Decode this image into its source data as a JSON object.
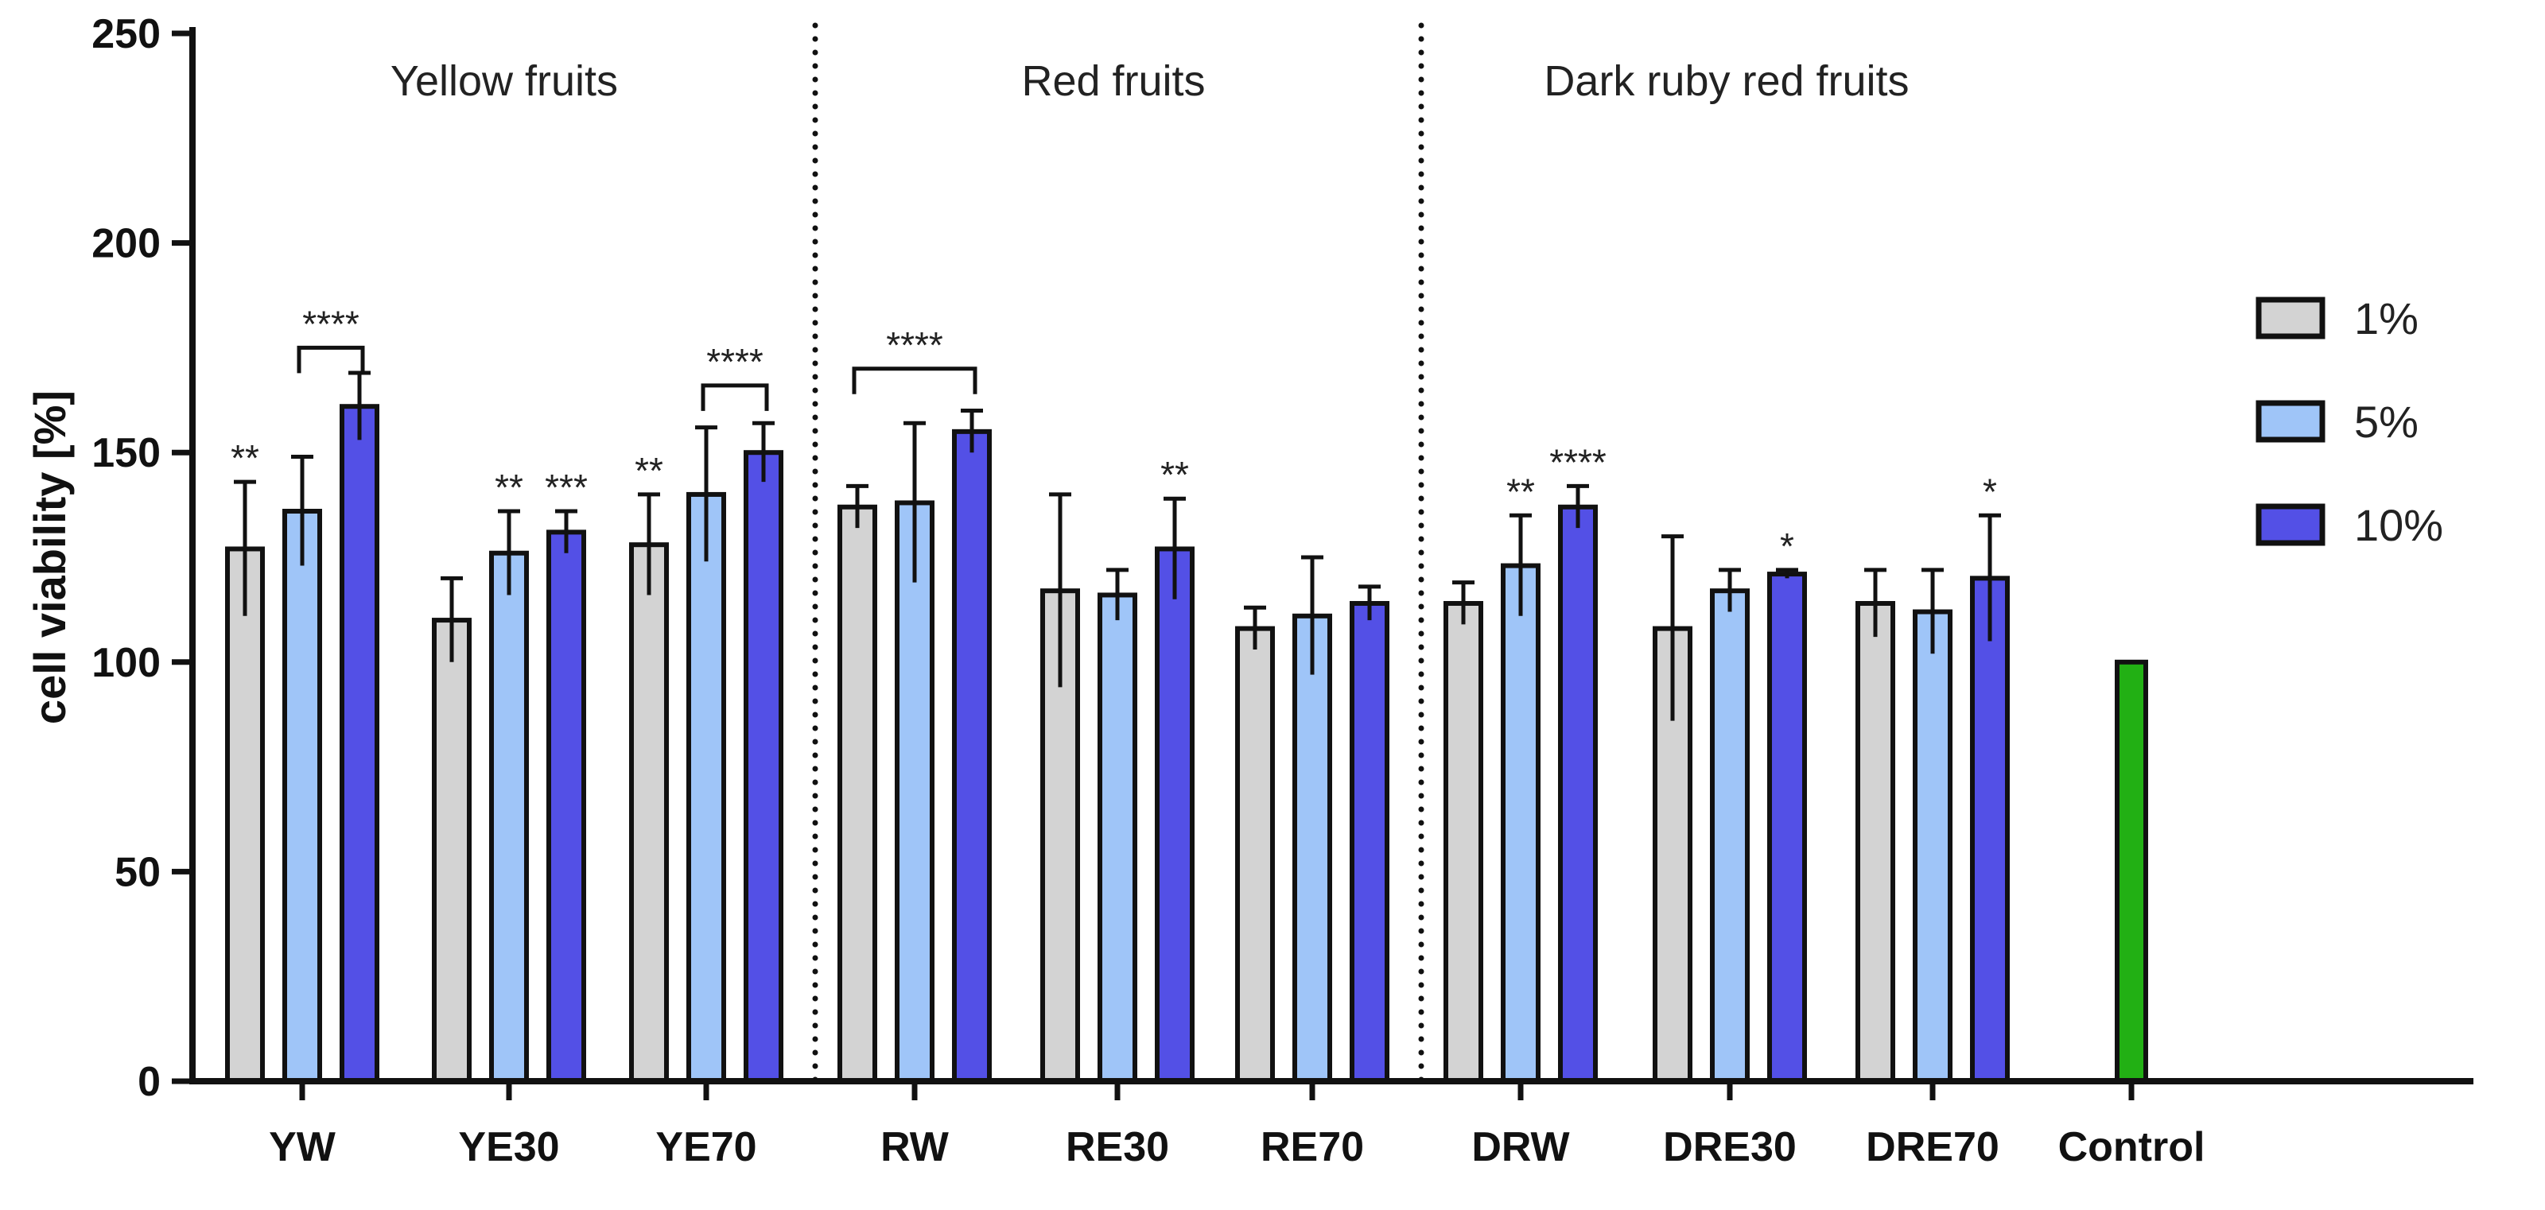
{
  "chart_data": {
    "type": "bar",
    "title": "",
    "xlabel": "",
    "ylabel": "cell viability [%]",
    "ylim": [
      0,
      250
    ],
    "yticks": [
      0,
      50,
      100,
      150,
      200,
      250
    ],
    "categories": [
      "YW",
      "YE30",
      "YE70",
      "RW",
      "RE30",
      "RE70",
      "DRW",
      "DRE30",
      "DRE70",
      "Control"
    ],
    "series": [
      {
        "name": "1%",
        "color": "#d3d3d3",
        "values": [
          127,
          110,
          128,
          137,
          117,
          108,
          114,
          108,
          114,
          null
        ],
        "errors": [
          16,
          10,
          12,
          5,
          23,
          5,
          5,
          22,
          8,
          null
        ]
      },
      {
        "name": "5%",
        "color": "#9fc5f8",
        "values": [
          136,
          126,
          140,
          138,
          116,
          111,
          123,
          117,
          112,
          null
        ],
        "errors": [
          13,
          10,
          16,
          19,
          6,
          14,
          12,
          5,
          10,
          null
        ]
      },
      {
        "name": "10%",
        "color": "#5350e6",
        "values": [
          161,
          131,
          150,
          155,
          127,
          114,
          137,
          121,
          120,
          null
        ],
        "errors": [
          8,
          5,
          7,
          5,
          12,
          4,
          5,
          1,
          15,
          null
        ]
      }
    ],
    "control": {
      "category": "Control",
      "value": 100,
      "color": "#22b014"
    },
    "groups": [
      {
        "label": "Yellow fruits",
        "categories": [
          "YW",
          "YE30",
          "YE70"
        ]
      },
      {
        "label": "Red fruits",
        "categories": [
          "RW",
          "RE30",
          "RE70"
        ]
      },
      {
        "label": "Dark ruby red fruits",
        "categories": [
          "DRW",
          "DRE30",
          "DRE70"
        ]
      }
    ],
    "group_separators_after": [
      "YE70",
      "RE70"
    ],
    "annotations": [
      {
        "category": "YW",
        "series": "1%",
        "text": "**"
      },
      {
        "category": "YE30",
        "series": "5%",
        "text": "**"
      },
      {
        "category": "YE30",
        "series": "10%",
        "text": "***"
      },
      {
        "category": "YE70",
        "series": "1%",
        "text": "**"
      },
      {
        "category": "RE30",
        "series": "10%",
        "text": "**"
      },
      {
        "category": "DRW",
        "series": "5%",
        "text": "**"
      },
      {
        "category": "DRW",
        "series": "10%",
        "text": "****"
      },
      {
        "category": "DRE30",
        "series": "10%",
        "text": "*"
      },
      {
        "category": "DRE70",
        "series": "10%",
        "text": "*"
      }
    ],
    "brackets": [
      {
        "category": "YW",
        "from": "5%",
        "to": "10%",
        "level": 175,
        "text": "****"
      },
      {
        "category": "YE70",
        "from": "5%",
        "to": "10%",
        "level": 166,
        "text": "****"
      },
      {
        "category": "RW",
        "from": "1%",
        "to": "10%",
        "level": 170,
        "text": "****"
      }
    ],
    "legend": {
      "position": "right",
      "entries": [
        "1%",
        "5%",
        "10%"
      ]
    }
  }
}
